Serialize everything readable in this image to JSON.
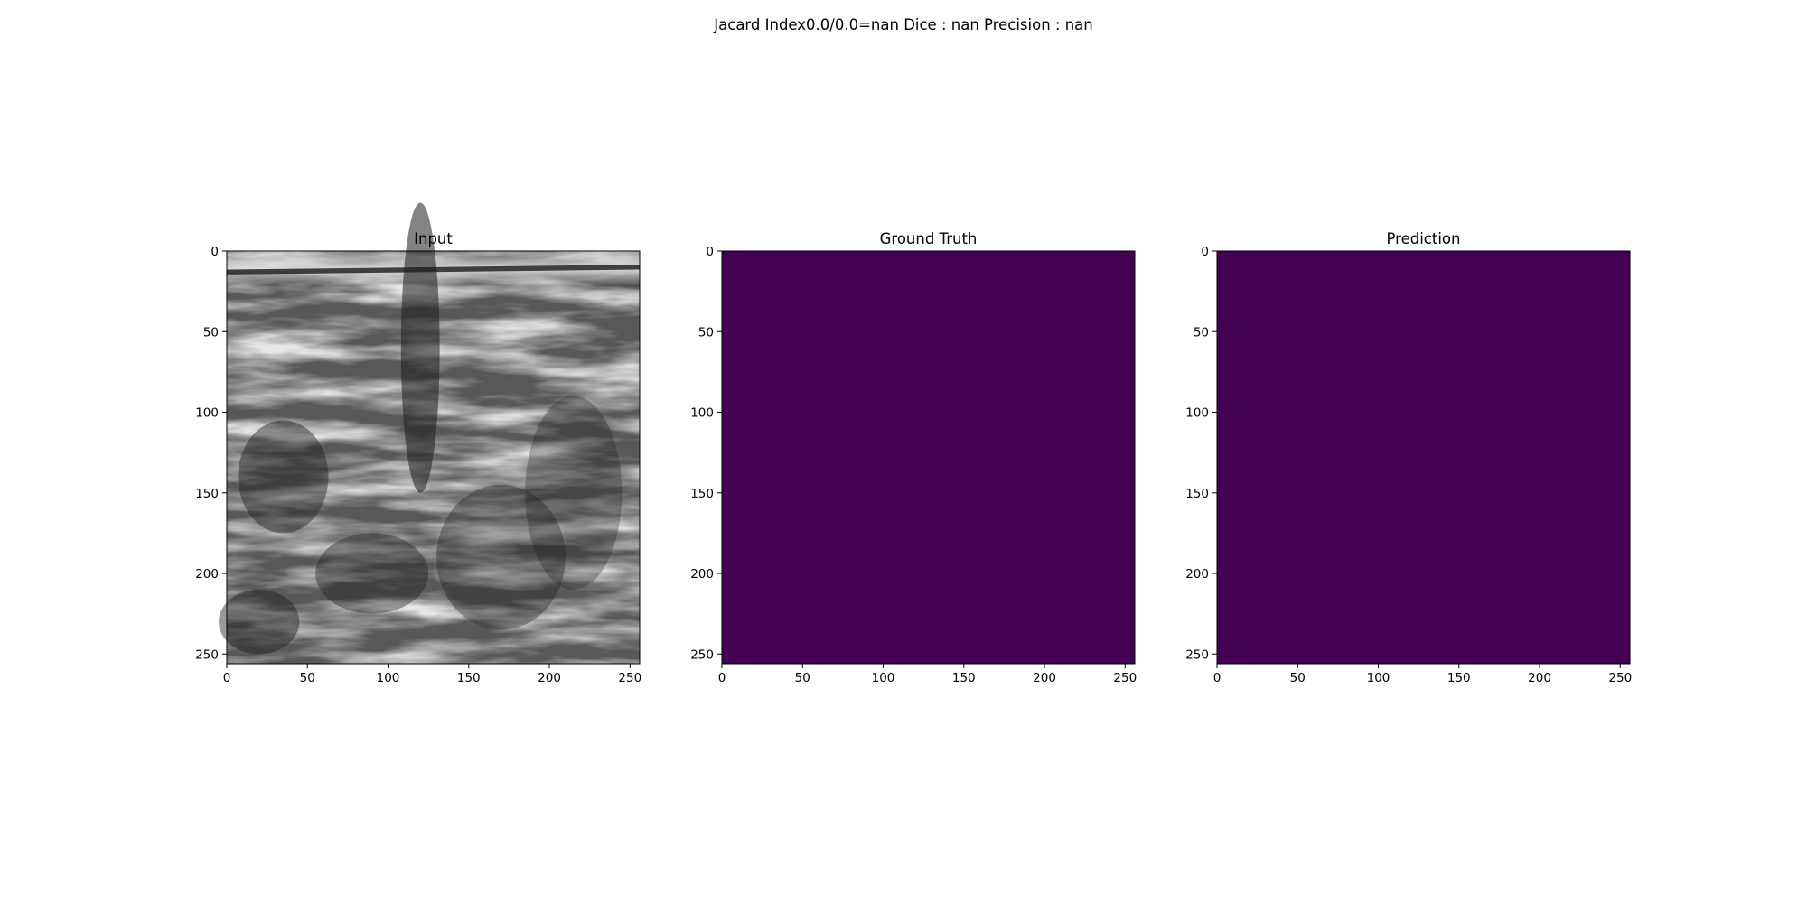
{
  "figure": {
    "suptitle": "Jacard Index0.0/0.0=nan Dice : nan Precision : nan",
    "background": "#ffffff"
  },
  "chart_data": [
    {
      "type": "image",
      "title": "Input",
      "colormap": "gray",
      "image_shape": [
        256,
        256
      ],
      "xlim": [
        0,
        256
      ],
      "ylim": [
        256,
        0
      ],
      "x_ticks": [
        0,
        50,
        100,
        150,
        200,
        250
      ],
      "y_ticks": [
        0,
        50,
        100,
        150,
        200,
        250
      ],
      "content": "grayscale ultrasound image"
    },
    {
      "type": "image",
      "title": "Ground Truth",
      "colormap": "viridis",
      "image_shape": [
        256,
        256
      ],
      "xlim": [
        0,
        256
      ],
      "ylim": [
        256,
        0
      ],
      "x_ticks": [
        0,
        50,
        100,
        150,
        200,
        250
      ],
      "y_ticks": [
        0,
        50,
        100,
        150,
        200,
        250
      ],
      "fill_value": 0,
      "fill_color": "#440154"
    },
    {
      "type": "image",
      "title": "Prediction",
      "colormap": "viridis",
      "image_shape": [
        256,
        256
      ],
      "xlim": [
        0,
        256
      ],
      "ylim": [
        256,
        0
      ],
      "x_ticks": [
        0,
        50,
        100,
        150,
        200,
        250
      ],
      "y_ticks": [
        0,
        50,
        100,
        150,
        200,
        250
      ],
      "fill_value": 0,
      "fill_color": "#440154"
    }
  ]
}
